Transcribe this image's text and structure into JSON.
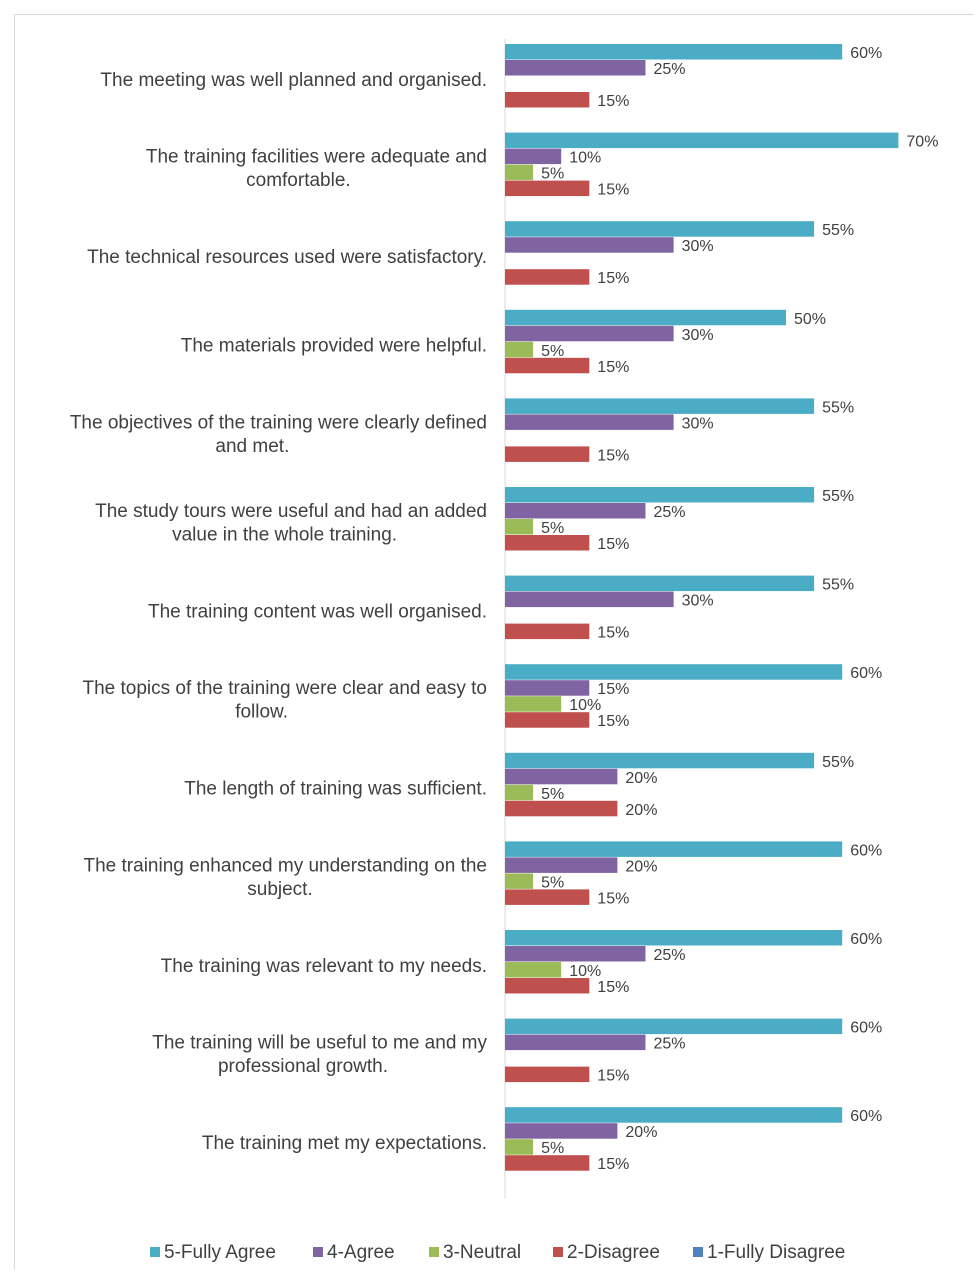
{
  "chart_data": {
    "type": "bar",
    "orientation": "horizontal",
    "categories": [
      "The meeting was well planned and organised.",
      "The training facilities were adequate and comfortable.",
      "The technical resources used were satisfactory.",
      "The materials provided were helpful.",
      "The objectives of the training were clearly defined and met.",
      "The study tours were useful and had an added value in the whole training.",
      "The training content was well organised.",
      "The topics of the training were clear and easy to follow.",
      "The length of training was sufficient.",
      "The training enhanced my understanding on the subject.",
      "The training was relevant to my needs.",
      "The training will be useful to me and my professional growth.",
      "The training met my expectations."
    ],
    "category_lines": [
      [
        "The meeting was well planned and organised."
      ],
      [
        "The training facilities were adequate and",
        "comfortable."
      ],
      [
        "The technical resources used were satisfactory."
      ],
      [
        "The materials provided were helpful."
      ],
      [
        "The objectives of the training were clearly defined",
        "and met."
      ],
      [
        "The study tours were useful and had an added",
        "value in the whole training."
      ],
      [
        "The training content was well organised."
      ],
      [
        "The topics of the training were clear and easy to",
        "follow."
      ],
      [
        "The length of training was sufficient."
      ],
      [
        "The training enhanced my understanding on the",
        "subject."
      ],
      [
        "The training was relevant to my needs."
      ],
      [
        "The training will be useful to me and my",
        "professional growth."
      ],
      [
        "The training met my expectations."
      ]
    ],
    "series": [
      {
        "name": "5-Fully Agree",
        "color": "#4bacc6",
        "values": [
          60,
          70,
          55,
          50,
          55,
          55,
          55,
          60,
          55,
          60,
          60,
          60,
          60
        ]
      },
      {
        "name": "4-Agree",
        "color": "#8064a2",
        "values": [
          25,
          10,
          30,
          30,
          30,
          25,
          30,
          15,
          20,
          20,
          25,
          25,
          20
        ]
      },
      {
        "name": "3-Neutral",
        "color": "#9bbb59",
        "values": [
          0,
          5,
          0,
          5,
          0,
          5,
          0,
          10,
          5,
          5,
          10,
          0,
          5
        ]
      },
      {
        "name": "2-Disagree",
        "color": "#c0504d",
        "values": [
          15,
          15,
          15,
          15,
          15,
          15,
          15,
          15,
          20,
          15,
          15,
          15,
          15
        ]
      },
      {
        "name": "1-Fully Disagree",
        "color": "#4f81bd",
        "values": [
          0,
          0,
          0,
          0,
          0,
          0,
          0,
          0,
          0,
          0,
          0,
          0,
          0
        ]
      }
    ],
    "value_suffix": "%",
    "xlim": [
      0,
      100
    ],
    "grid": false,
    "legend_position": "bottom"
  }
}
